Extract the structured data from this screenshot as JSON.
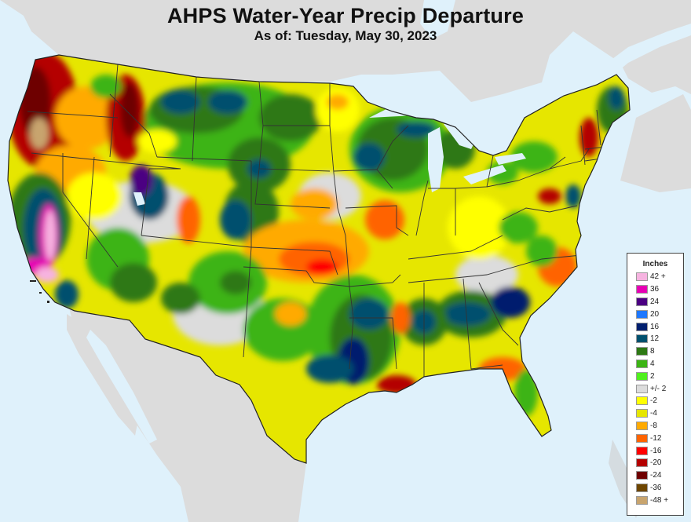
{
  "header": {
    "title": "AHPS Water-Year Precip Departure",
    "subtitle": "As of: Tuesday, May 30, 2023"
  },
  "map": {
    "region": "Contiguous United States",
    "ocean_color": "#dff1fb",
    "surrounding_land_color": "#dcdcdc",
    "state_border_color": "#333333"
  },
  "legend": {
    "title": "Inches",
    "items": [
      {
        "label": "42 +",
        "color": "#f6b3e0"
      },
      {
        "label": "36",
        "color": "#e600b4"
      },
      {
        "label": "24",
        "color": "#4b0082"
      },
      {
        "label": "20",
        "color": "#1e78ff"
      },
      {
        "label": "16",
        "color": "#001f6e"
      },
      {
        "label": "12",
        "color": "#00506e"
      },
      {
        "label": "8",
        "color": "#2d7814"
      },
      {
        "label": "4",
        "color": "#3cb414"
      },
      {
        "label": "2",
        "color": "#50f01e"
      },
      {
        "label": "+/- 2",
        "color": "#dcdcdc"
      },
      {
        "label": "-2",
        "color": "#ffff00"
      },
      {
        "label": "-4",
        "color": "#e6e600"
      },
      {
        "label": "-8",
        "color": "#ffaa00"
      },
      {
        "label": "-12",
        "color": "#ff6400"
      },
      {
        "label": "-16",
        "color": "#ff0000"
      },
      {
        "label": "-20",
        "color": "#b40000"
      },
      {
        "label": "-24",
        "color": "#6e0000"
      },
      {
        "label": "-36",
        "color": "#6e4600"
      },
      {
        "label": "-48 +",
        "color": "#c8a46e"
      }
    ]
  }
}
